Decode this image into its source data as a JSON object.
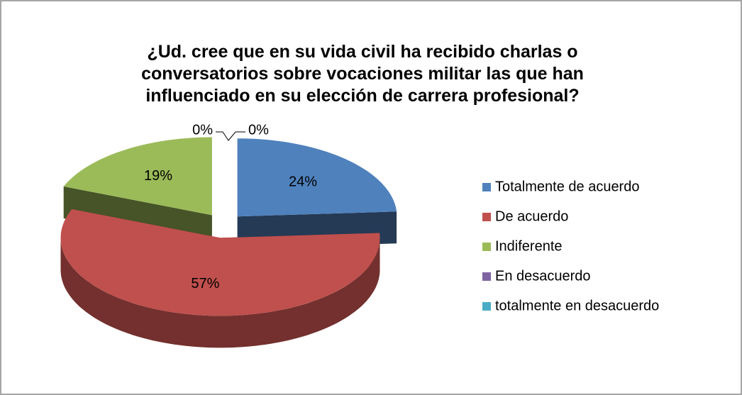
{
  "chart_data": {
    "type": "pie",
    "title": "¿Ud. cree que en su vida civil ha recibido charlas o conversatorios sobre vocaciones militar las que han influenciado en su elección de carrera profesional?",
    "categories": [
      "Totalmente de acuerdo",
      "De acuerdo",
      "Indiferente",
      "En desacuerdo",
      "totalmente en desacuerdo"
    ],
    "values": [
      24,
      57,
      19,
      0,
      0
    ],
    "value_labels": [
      "24%",
      "57%",
      "19%",
      "0%",
      "0%"
    ],
    "colors": [
      "#4f81bd",
      "#c0504d",
      "#9bbb59",
      "#8064a2",
      "#4bacc6"
    ],
    "legend": "right"
  }
}
